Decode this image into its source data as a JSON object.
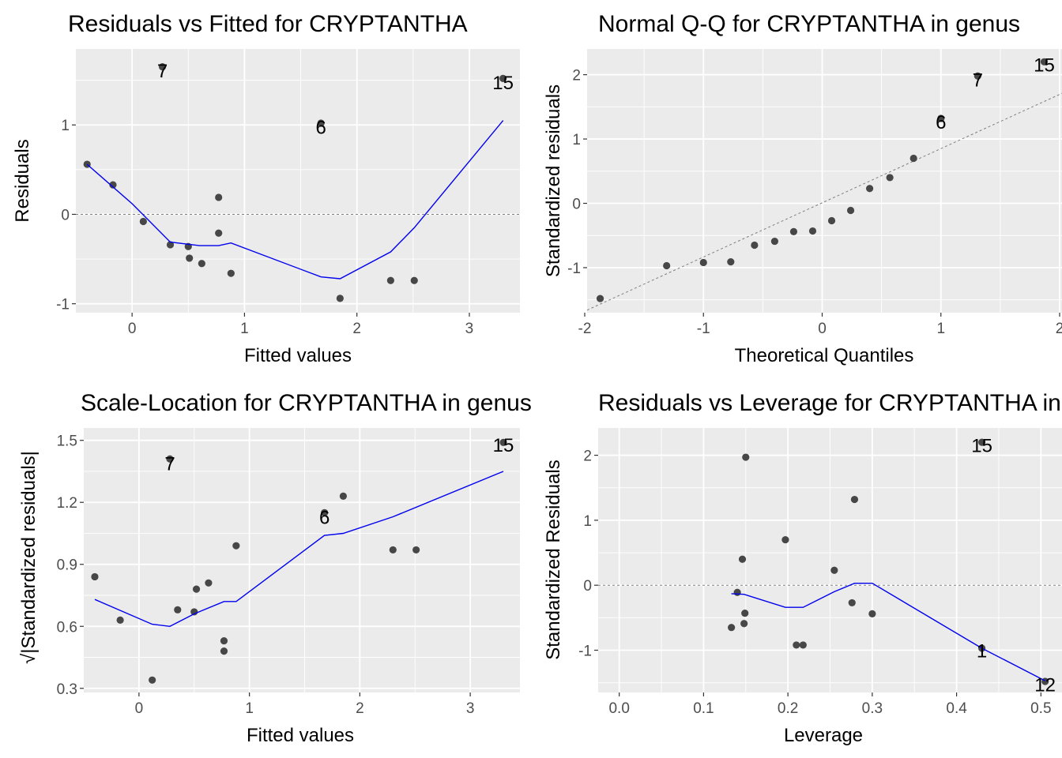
{
  "chart_data": [
    {
      "type": "scatter",
      "title": "Residuals vs Fitted for CRYPTANTHA",
      "xlabel": "Fitted values",
      "ylabel": "Residuals",
      "xlim": [
        -0.5,
        3.45
      ],
      "ylim": [
        -1.1,
        1.85
      ],
      "xticks": [
        0,
        1,
        2,
        3
      ],
      "yticks": [
        -1,
        0,
        1
      ],
      "x_tick_labels": [
        "0",
        "1",
        "2",
        "3"
      ],
      "y_tick_labels": [
        "-1",
        "0",
        "1"
      ],
      "grid": true,
      "refline": {
        "type": "hline",
        "y": 0
      },
      "points": [
        {
          "x": -0.4,
          "y": 0.56
        },
        {
          "x": -0.17,
          "y": 0.33
        },
        {
          "x": 0.1,
          "y": -0.08
        },
        {
          "x": 0.34,
          "y": -0.34
        },
        {
          "x": 0.5,
          "y": -0.36
        },
        {
          "x": 0.51,
          "y": -0.49
        },
        {
          "x": 0.62,
          "y": -0.55
        },
        {
          "x": 0.77,
          "y": 0.19
        },
        {
          "x": 0.77,
          "y": -0.21
        },
        {
          "x": 0.88,
          "y": -0.66
        },
        {
          "x": 1.85,
          "y": -0.94
        },
        {
          "x": 2.3,
          "y": -0.74
        },
        {
          "x": 2.51,
          "y": -0.74
        },
        {
          "x": 0.27,
          "y": 1.65
        },
        {
          "x": 1.68,
          "y": 1.02
        },
        {
          "x": 3.3,
          "y": 1.52
        }
      ],
      "labels": [
        {
          "text": "7",
          "x": 0.27,
          "y": 1.61
        },
        {
          "text": "6",
          "x": 1.68,
          "y": 0.98
        },
        {
          "text": "15",
          "x": 3.3,
          "y": 1.48
        }
      ],
      "smooth": [
        {
          "x": -0.4,
          "y": 0.56
        },
        {
          "x": 0.0,
          "y": 0.12
        },
        {
          "x": 0.34,
          "y": -0.31
        },
        {
          "x": 0.6,
          "y": -0.35
        },
        {
          "x": 0.77,
          "y": -0.35
        },
        {
          "x": 0.88,
          "y": -0.32
        },
        {
          "x": 1.68,
          "y": -0.7
        },
        {
          "x": 1.85,
          "y": -0.72
        },
        {
          "x": 2.3,
          "y": -0.42
        },
        {
          "x": 2.51,
          "y": -0.15
        },
        {
          "x": 3.3,
          "y": 1.05
        }
      ]
    },
    {
      "type": "scatter",
      "title": "Normal Q-Q for CRYPTANTHA in genus",
      "xlabel": "Theoretical Quantiles",
      "ylabel": "Standardized residuals",
      "xlim": [
        -1.98,
        2.02
      ],
      "ylim": [
        -1.7,
        2.4
      ],
      "xticks": [
        -2,
        -1,
        0,
        1,
        2
      ],
      "yticks": [
        -1,
        0,
        1,
        2
      ],
      "x_tick_labels": [
        "-2",
        "-1",
        "0",
        "1",
        "2"
      ],
      "y_tick_labels": [
        "-1",
        "0",
        "1",
        "2"
      ],
      "grid": true,
      "refline": {
        "type": "line",
        "x1": -1.98,
        "y1": -1.66,
        "x2": 2.02,
        "y2": 1.71
      },
      "points": [
        {
          "x": -1.87,
          "y": -1.48
        },
        {
          "x": -1.31,
          "y": -0.97
        },
        {
          "x": -1.0,
          "y": -0.92
        },
        {
          "x": -0.77,
          "y": -0.91
        },
        {
          "x": -0.57,
          "y": -0.65
        },
        {
          "x": -0.4,
          "y": -0.59
        },
        {
          "x": -0.24,
          "y": -0.44
        },
        {
          "x": -0.08,
          "y": -0.43
        },
        {
          "x": 0.08,
          "y": -0.27
        },
        {
          "x": 0.24,
          "y": -0.11
        },
        {
          "x": 0.4,
          "y": 0.23
        },
        {
          "x": 0.57,
          "y": 0.4
        },
        {
          "x": 0.77,
          "y": 0.7
        },
        {
          "x": 1.0,
          "y": 1.32
        },
        {
          "x": 1.31,
          "y": 1.98
        },
        {
          "x": 1.87,
          "y": 2.2
        }
      ],
      "labels": [
        {
          "text": "6",
          "x": 1.0,
          "y": 1.27
        },
        {
          "text": "7",
          "x": 1.31,
          "y": 1.93
        },
        {
          "text": "15",
          "x": 1.87,
          "y": 2.16
        }
      ]
    },
    {
      "type": "scatter",
      "title": "Scale-Location for CRYPTANTHA in genus",
      "xlabel": "Fitted values",
      "ylabel": "√|Standardized residuals|",
      "xlim": [
        -0.5,
        3.45
      ],
      "ylim": [
        0.28,
        1.56
      ],
      "xticks": [
        0,
        1,
        2,
        3
      ],
      "yticks": [
        0.3,
        0.6,
        0.9,
        1.2,
        1.5
      ],
      "x_tick_labels": [
        "0",
        "1",
        "2",
        "3"
      ],
      "y_tick_labels": [
        "0.3",
        "0.6",
        "0.9",
        "1.2",
        "1.5"
      ],
      "grid": true,
      "points": [
        {
          "x": -0.4,
          "y": 0.84
        },
        {
          "x": -0.17,
          "y": 0.63
        },
        {
          "x": 0.12,
          "y": 0.34
        },
        {
          "x": 0.35,
          "y": 0.68
        },
        {
          "x": 0.5,
          "y": 0.67
        },
        {
          "x": 0.52,
          "y": 0.78
        },
        {
          "x": 0.63,
          "y": 0.81
        },
        {
          "x": 0.77,
          "y": 0.53
        },
        {
          "x": 0.77,
          "y": 0.48
        },
        {
          "x": 0.88,
          "y": 0.99
        },
        {
          "x": 1.85,
          "y": 1.23
        },
        {
          "x": 2.3,
          "y": 0.97
        },
        {
          "x": 2.51,
          "y": 0.97
        },
        {
          "x": 0.28,
          "y": 1.41
        },
        {
          "x": 1.68,
          "y": 1.15
        },
        {
          "x": 3.3,
          "y": 1.49
        }
      ],
      "labels": [
        {
          "text": "7",
          "x": 0.28,
          "y": 1.39
        },
        {
          "text": "6",
          "x": 1.68,
          "y": 1.13
        },
        {
          "text": "15",
          "x": 3.3,
          "y": 1.48
        }
      ],
      "smooth": [
        {
          "x": -0.4,
          "y": 0.73
        },
        {
          "x": 0.12,
          "y": 0.61
        },
        {
          "x": 0.28,
          "y": 0.6
        },
        {
          "x": 0.5,
          "y": 0.66
        },
        {
          "x": 0.77,
          "y": 0.72
        },
        {
          "x": 0.88,
          "y": 0.72
        },
        {
          "x": 1.68,
          "y": 1.04
        },
        {
          "x": 1.85,
          "y": 1.05
        },
        {
          "x": 2.3,
          "y": 1.13
        },
        {
          "x": 3.3,
          "y": 1.35
        }
      ]
    },
    {
      "type": "scatter",
      "title": "Residuals vs Leverage for CRYPTANTHA in genus",
      "xlabel": "Leverage",
      "ylabel": "Standardized Residuals",
      "xlim": [
        -0.025,
        0.525
      ],
      "ylim": [
        -1.65,
        2.42
      ],
      "xticks": [
        0.0,
        0.1,
        0.2,
        0.3,
        0.4,
        0.5
      ],
      "yticks": [
        -1,
        0,
        1,
        2
      ],
      "x_tick_labels": [
        "0.0",
        "0.1",
        "0.2",
        "0.3",
        "0.4",
        "0.5"
      ],
      "y_tick_labels": [
        "-1",
        "0",
        "1",
        "2"
      ],
      "grid": true,
      "refline": {
        "type": "hline",
        "y": 0
      },
      "points": [
        {
          "x": 0.133,
          "y": -0.65
        },
        {
          "x": 0.14,
          "y": -0.11
        },
        {
          "x": 0.146,
          "y": 0.4
        },
        {
          "x": 0.148,
          "y": -0.59
        },
        {
          "x": 0.149,
          "y": -0.43
        },
        {
          "x": 0.15,
          "y": 1.97
        },
        {
          "x": 0.197,
          "y": 0.7
        },
        {
          "x": 0.21,
          "y": -0.92
        },
        {
          "x": 0.218,
          "y": -0.92
        },
        {
          "x": 0.255,
          "y": 0.23
        },
        {
          "x": 0.276,
          "y": -0.27
        },
        {
          "x": 0.279,
          "y": 1.32
        },
        {
          "x": 0.3,
          "y": -0.44
        },
        {
          "x": 0.43,
          "y": 2.2
        },
        {
          "x": 0.43,
          "y": -0.97
        },
        {
          "x": 0.505,
          "y": -1.48
        }
      ],
      "labels": [
        {
          "text": "15",
          "x": 0.43,
          "y": 2.16
        },
        {
          "text": "1",
          "x": 0.43,
          "y": -1.0
        },
        {
          "text": "12",
          "x": 0.505,
          "y": -1.52
        }
      ],
      "smooth": [
        {
          "x": 0.133,
          "y": -0.13
        },
        {
          "x": 0.148,
          "y": -0.14
        },
        {
          "x": 0.197,
          "y": -0.34
        },
        {
          "x": 0.218,
          "y": -0.34
        },
        {
          "x": 0.255,
          "y": -0.1
        },
        {
          "x": 0.279,
          "y": 0.03
        },
        {
          "x": 0.3,
          "y": 0.03
        },
        {
          "x": 0.43,
          "y": -0.97
        },
        {
          "x": 0.505,
          "y": -1.47
        }
      ]
    }
  ]
}
